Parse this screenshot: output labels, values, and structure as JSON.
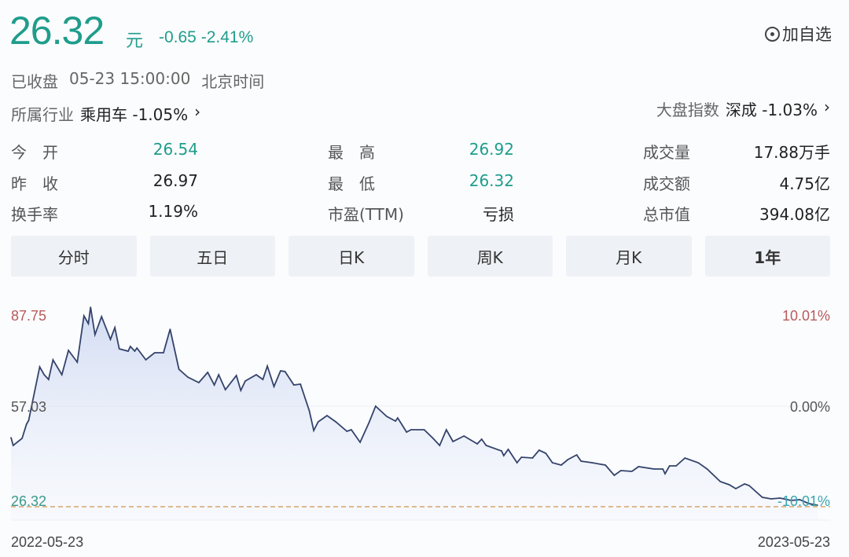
{
  "header": {
    "price": "26.32",
    "unit": "元",
    "change": "-0.65 -2.41%",
    "watch_label": "加自选",
    "status": "已收盘",
    "datetime": "05-23 15:00:00",
    "timezone": "北京时间",
    "industry_label": "所属行业",
    "industry_value": "乘用车 -1.05%",
    "index_label": "大盘指数",
    "index_value": "深成 -1.03%",
    "chevron": "›"
  },
  "stats": [
    {
      "label": "今　开",
      "value": "26.54"
    },
    {
      "label": "昨　收",
      "value": "26.97"
    },
    {
      "label": "换手率",
      "value": "1.19%"
    },
    {
      "label": "最　高",
      "value": "26.92"
    },
    {
      "label": "最　低",
      "value": "26.32"
    },
    {
      "label": "市盈(TTM)",
      "value": "亏损"
    },
    {
      "label": "成交量",
      "value": "17.88万手"
    },
    {
      "label": "成交额",
      "value": "4.75亿"
    },
    {
      "label": "总市值",
      "value": "394.08亿"
    }
  ],
  "tabs": [
    "分时",
    "五日",
    "日K",
    "周K",
    "月K",
    "1年"
  ],
  "active_tab": "1年",
  "colors": {
    "accent": "#1f9d8b",
    "line": "#34436b",
    "high_label": "#b85a5a",
    "reference_line": "#d9a46a"
  },
  "chart_data": {
    "type": "area",
    "y_left_ticks": [
      "87.75",
      "57.03",
      "26.32"
    ],
    "y_right_ticks": [
      "10.01%",
      "0.00%",
      "-10.01%"
    ],
    "x_ticks": [
      "2022-05-23",
      "2023-05-23"
    ],
    "ylim": [
      26.32,
      87.75
    ],
    "reference_value": 26.32,
    "grid": true,
    "points": [
      [
        "2022-05-23",
        47.28
      ],
      [
        "2022-05-24",
        44.84
      ],
      [
        "2022-05-28",
        47.04
      ],
      [
        "2022-05-30",
        51.42
      ],
      [
        "2022-05-31",
        52.64
      ],
      [
        "2022-06-05",
        69.22
      ],
      [
        "2022-06-07",
        66.78
      ],
      [
        "2022-06-09",
        65.32
      ],
      [
        "2022-06-11",
        71.42
      ],
      [
        "2022-06-15",
        66.78
      ],
      [
        "2022-06-18",
        74.34
      ],
      [
        "2022-06-22",
        70.68
      ],
      [
        "2022-06-25",
        85.07
      ],
      [
        "2022-06-27",
        82.63
      ],
      [
        "2022-06-28",
        87.75
      ],
      [
        "2022-06-30",
        79.22
      ],
      [
        "2022-07-03",
        84.82
      ],
      [
        "2022-07-07",
        77.75
      ],
      [
        "2022-07-09",
        81.41
      ],
      [
        "2022-07-11",
        74.83
      ],
      [
        "2022-07-15",
        74.1
      ],
      [
        "2022-07-16",
        75.56
      ],
      [
        "2022-07-18",
        74.1
      ],
      [
        "2022-07-19",
        75.07
      ],
      [
        "2022-07-23",
        71.42
      ],
      [
        "2022-07-27",
        73.61
      ],
      [
        "2022-07-31",
        73.61
      ],
      [
        "2022-08-03",
        80.92
      ],
      [
        "2022-08-07",
        68.49
      ],
      [
        "2022-08-11",
        66.05
      ],
      [
        "2022-08-16",
        64.35
      ],
      [
        "2022-08-20",
        67.51
      ],
      [
        "2022-08-23",
        63.61
      ],
      [
        "2022-08-25",
        66.78
      ],
      [
        "2022-08-28",
        62.15
      ],
      [
        "2022-09-02",
        66.54
      ],
      [
        "2022-09-04",
        61.91
      ],
      [
        "2022-09-06",
        64.83
      ],
      [
        "2022-09-11",
        66.78
      ],
      [
        "2022-09-14",
        65.32
      ],
      [
        "2022-09-16",
        69.47
      ],
      [
        "2022-09-19",
        63.13
      ],
      [
        "2022-09-22",
        68.0
      ],
      [
        "2022-09-24",
        67.76
      ],
      [
        "2022-09-28",
        63.61
      ],
      [
        "2022-10-01",
        63.86
      ],
      [
        "2022-10-05",
        55.57
      ],
      [
        "2022-10-07",
        49.47
      ],
      [
        "2022-10-09",
        52.16
      ],
      [
        "2022-10-13",
        54.11
      ],
      [
        "2022-10-17",
        52.16
      ],
      [
        "2022-10-22",
        49.23
      ],
      [
        "2022-10-24",
        49.72
      ],
      [
        "2022-10-28",
        45.82
      ],
      [
        "2022-11-01",
        51.91
      ],
      [
        "2022-11-04",
        57.03
      ],
      [
        "2022-11-09",
        53.86
      ],
      [
        "2022-11-13",
        52.4
      ],
      [
        "2022-11-14",
        53.37
      ],
      [
        "2022-11-18",
        48.99
      ],
      [
        "2022-11-20",
        49.72
      ],
      [
        "2022-11-26",
        49.72
      ],
      [
        "2022-11-30",
        47.04
      ],
      [
        "2022-12-03",
        44.84
      ],
      [
        "2022-12-06",
        49.72
      ],
      [
        "2022-12-09",
        46.06
      ],
      [
        "2022-12-14",
        47.77
      ],
      [
        "2022-12-20",
        45.33
      ],
      [
        "2022-12-22",
        46.79
      ],
      [
        "2022-12-24",
        44.84
      ],
      [
        "2022-12-31",
        43.14
      ],
      [
        "2023-01-01",
        41.67
      ],
      [
        "2023-01-03",
        43.62
      ],
      [
        "2023-01-07",
        39.48
      ],
      [
        "2023-01-09",
        41.19
      ],
      [
        "2023-01-14",
        40.94
      ],
      [
        "2023-01-17",
        43.38
      ],
      [
        "2023-01-20",
        42.4
      ],
      [
        "2023-01-23",
        39.48
      ],
      [
        "2023-01-27",
        38.75
      ],
      [
        "2023-01-30",
        40.45
      ],
      [
        "2023-02-03",
        41.92
      ],
      [
        "2023-02-05",
        39.97
      ],
      [
        "2023-02-10",
        39.48
      ],
      [
        "2023-02-16",
        38.75
      ],
      [
        "2023-02-20",
        35.58
      ],
      [
        "2023-02-23",
        37.04
      ],
      [
        "2023-02-28",
        36.8
      ],
      [
        "2023-03-03",
        38.26
      ],
      [
        "2023-03-10",
        37.53
      ],
      [
        "2023-03-14",
        37.53
      ],
      [
        "2023-03-15",
        36.07
      ],
      [
        "2023-03-17",
        38.5
      ],
      [
        "2023-03-20",
        38.5
      ],
      [
        "2023-03-24",
        40.94
      ],
      [
        "2023-03-30",
        39.48
      ],
      [
        "2023-04-03",
        37.53
      ],
      [
        "2023-04-09",
        33.63
      ],
      [
        "2023-04-13",
        32.65
      ],
      [
        "2023-04-16",
        31.43
      ],
      [
        "2023-04-20",
        32.9
      ],
      [
        "2023-04-22",
        32.41
      ],
      [
        "2023-04-28",
        28.75
      ],
      [
        "2023-05-02",
        28.26
      ],
      [
        "2023-05-06",
        28.51
      ],
      [
        "2023-05-11",
        27.78
      ],
      [
        "2023-05-15",
        28.02
      ],
      [
        "2023-05-19",
        26.8
      ],
      [
        "2023-05-23",
        26.32
      ]
    ]
  }
}
